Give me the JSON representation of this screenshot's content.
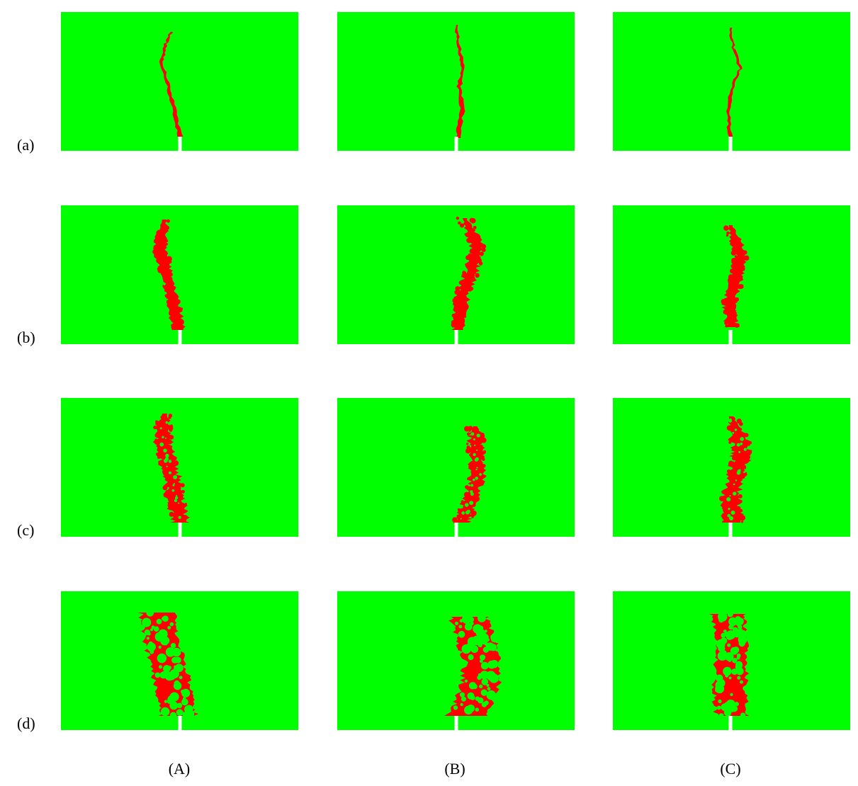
{
  "figure": {
    "row_labels": [
      "(a)",
      "(b)",
      "(c)",
      "(d)"
    ],
    "column_labels": [
      "(A)",
      "(B)",
      "(C)"
    ],
    "colors": {
      "background": "#00ff00",
      "damage": "#ff0000",
      "notch": "#ffffff"
    }
  }
}
